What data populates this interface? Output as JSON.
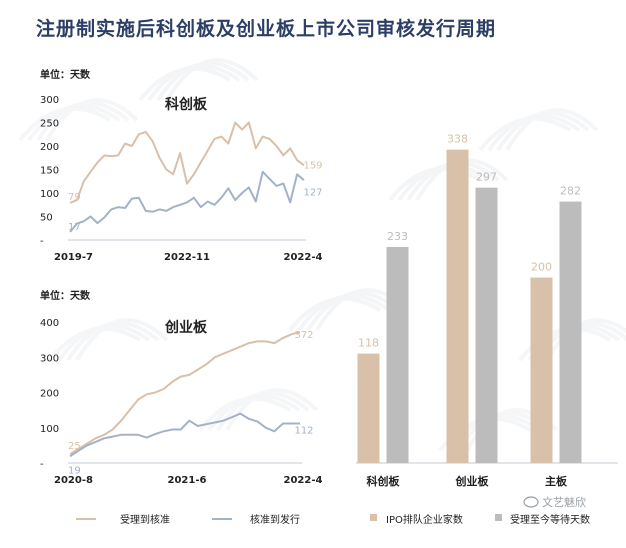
{
  "page_title": "注册制实施后科创板及创业板上市公司审核发行周期",
  "watermark": "文艺魅欣",
  "colors": {
    "tan": "#d8c0a9",
    "blue": "#a4b2c8",
    "gray": "#bcbcbc",
    "axis": "#cfd4dc",
    "text": "#222222",
    "title": "#2c3e66"
  },
  "chart_data": [
    {
      "type": "line",
      "title": "科创板",
      "unit_label": "单位：天数",
      "ylim": [
        0,
        300
      ],
      "yticks": [
        "300",
        "250",
        "200",
        "150",
        "100",
        "50",
        "-"
      ],
      "xtick_labels": [
        "2019-7",
        "2022-11",
        "2022-4"
      ],
      "series": [
        {
          "name": "受理到核准",
          "start_label": "79",
          "end_label": "159",
          "values": [
            79,
            85,
            125,
            145,
            165,
            180,
            178,
            180,
            205,
            200,
            225,
            230,
            210,
            175,
            150,
            140,
            185,
            120,
            140,
            165,
            190,
            215,
            220,
            205,
            250,
            235,
            250,
            195,
            220,
            215,
            200,
            180,
            195,
            170,
            159
          ]
        },
        {
          "name": "核准到发行",
          "start_label": "17",
          "end_label": "127",
          "values": [
            17,
            35,
            40,
            50,
            36,
            48,
            65,
            70,
            68,
            88,
            90,
            62,
            60,
            65,
            62,
            70,
            75,
            80,
            90,
            70,
            82,
            75,
            90,
            110,
            85,
            100,
            112,
            82,
            145,
            130,
            115,
            120,
            80,
            140,
            127
          ]
        }
      ]
    },
    {
      "type": "line",
      "title": "创业板",
      "unit_label": "单位：天数",
      "ylim": [
        0,
        400
      ],
      "yticks": [
        "400",
        "300",
        "200",
        "100",
        "-"
      ],
      "xtick_labels": [
        "2020-8",
        "2021-6",
        "2022-4"
      ],
      "series": [
        {
          "name": "受理到核准",
          "start_label": "25",
          "end_label": "372",
          "values": [
            25,
            40,
            55,
            70,
            80,
            95,
            120,
            150,
            180,
            195,
            200,
            210,
            230,
            245,
            250,
            265,
            280,
            300,
            310,
            320,
            330,
            340,
            345,
            345,
            340,
            355,
            365,
            372
          ]
        },
        {
          "name": "核准到发行",
          "start_label": "19",
          "end_label": "112",
          "values": [
            19,
            35,
            50,
            60,
            70,
            75,
            80,
            80,
            80,
            72,
            82,
            90,
            95,
            95,
            120,
            105,
            110,
            115,
            120,
            130,
            140,
            125,
            118,
            100,
            90,
            112,
            112,
            112
          ]
        }
      ]
    },
    {
      "type": "bar",
      "categories": [
        "科创板",
        "创业板",
        "主板"
      ],
      "ylim": [
        0,
        370
      ],
      "series": [
        {
          "name": "IPO排队企业家数",
          "values": [
            118,
            338,
            200
          ]
        },
        {
          "name": "受理至今等待天数",
          "values": [
            233,
            297,
            282
          ]
        }
      ]
    }
  ]
}
